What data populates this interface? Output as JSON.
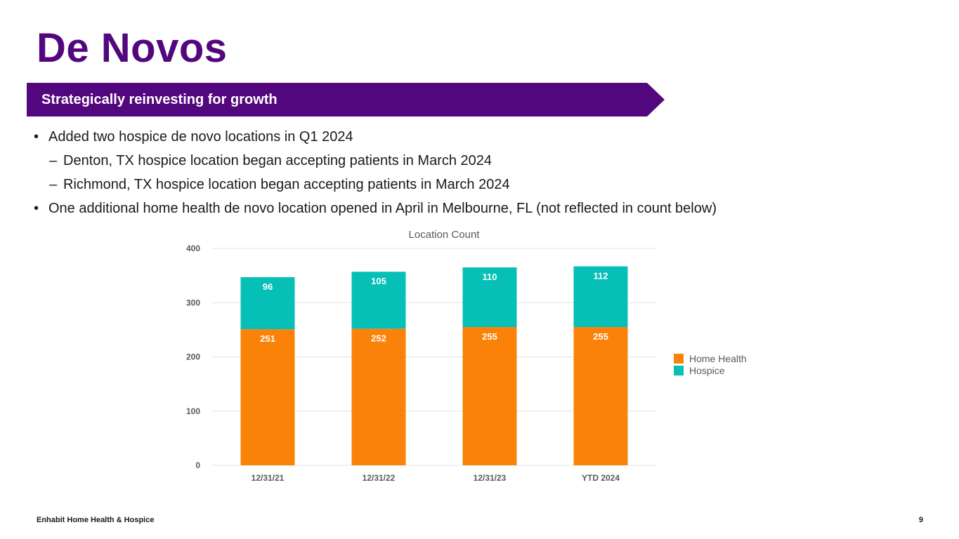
{
  "slide": {
    "title": "De Novos",
    "banner": "Strategically reinvesting for growth",
    "bullets": [
      {
        "mark": "•",
        "text": "Added two hospice de novo locations in Q1 2024"
      },
      {
        "mark": "–",
        "text": "Denton, TX hospice location began accepting patients in March 2024"
      },
      {
        "mark": "–",
        "text": "Richmond, TX hospice location began accepting patients in March 2024"
      },
      {
        "mark": "•",
        "text": "One additional home health de novo location opened in April in Melbourne, FL (not reflected in count below)"
      }
    ]
  },
  "colors": {
    "brand_purple": "#53077e",
    "home_health": "#fb8208",
    "hospice": "#06bfb7",
    "gridline": "#e3e3e3",
    "axis_text": "#595959"
  },
  "chart_data": {
    "type": "bar",
    "stacked": true,
    "title": "Location Count",
    "xlabel": "",
    "ylabel": "",
    "categories": [
      "12/31/21",
      "12/31/22",
      "12/31/23",
      "YTD 2024"
    ],
    "series": [
      {
        "name": "Home Health",
        "values": [
          251,
          252,
          255,
          255
        ]
      },
      {
        "name": "Hospice",
        "values": [
          96,
          105,
          110,
          112
        ]
      }
    ],
    "ylim": [
      0,
      400
    ],
    "yticks": [
      0,
      100,
      200,
      300,
      400
    ],
    "grid": true,
    "legend": "right"
  },
  "footer": {
    "company": "Enhabit Home Health & Hospice",
    "page_number": "9"
  }
}
